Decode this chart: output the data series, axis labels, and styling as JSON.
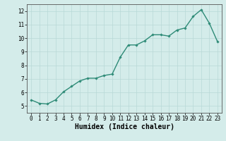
{
  "x": [
    0,
    1,
    2,
    3,
    4,
    5,
    6,
    7,
    8,
    9,
    10,
    11,
    12,
    13,
    14,
    15,
    16,
    17,
    18,
    19,
    20,
    21,
    22,
    23
  ],
  "y": [
    5.45,
    5.2,
    5.15,
    5.45,
    6.05,
    6.45,
    6.85,
    7.05,
    7.05,
    7.25,
    7.35,
    8.6,
    9.5,
    9.5,
    9.8,
    10.25,
    10.25,
    10.15,
    10.6,
    10.75,
    11.6,
    12.1,
    11.1,
    9.75
  ],
  "line_color": "#2e8b77",
  "marker": "D",
  "marker_size": 1.8,
  "linewidth": 1.0,
  "xlabel": "Humidex (Indice chaleur)",
  "xlabel_fontsize": 7,
  "ylim": [
    4.5,
    12.5
  ],
  "xlim": [
    -0.5,
    23.5
  ],
  "yticks": [
    5,
    6,
    7,
    8,
    9,
    10,
    11,
    12
  ],
  "xticks": [
    0,
    1,
    2,
    3,
    4,
    5,
    6,
    7,
    8,
    9,
    10,
    11,
    12,
    13,
    14,
    15,
    16,
    17,
    18,
    19,
    20,
    21,
    22,
    23
  ],
  "background_color": "#d4ecea",
  "grid_color": "#b8d8d6",
  "tick_fontsize": 5.5,
  "fig_width": 3.2,
  "fig_height": 2.0,
  "dpi": 100
}
